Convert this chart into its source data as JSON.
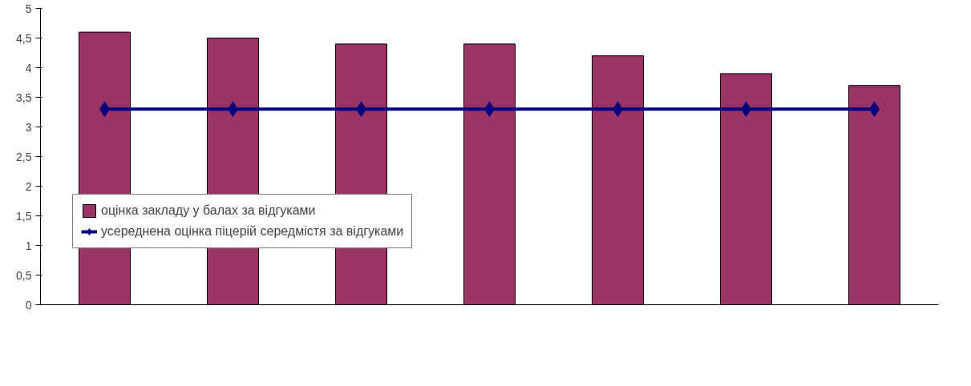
{
  "chart_data": {
    "type": "bar",
    "categories": [
      null,
      null,
      null,
      null,
      null,
      null,
      null
    ],
    "series": [
      {
        "name": "оцінка закладу у балах за відгуками",
        "color": "#993366",
        "values": [
          4.6,
          4.5,
          4.4,
          4.4,
          4.2,
          3.9,
          3.7
        ]
      },
      {
        "name": "усереднена оцінка піцерій середмістя за відгуками",
        "type": "line",
        "color": "#000080",
        "marker": "diamond",
        "values": [
          3.3,
          3.3,
          3.3,
          3.3,
          3.3,
          3.3,
          3.3
        ]
      }
    ],
    "ylim": [
      0,
      5
    ],
    "yticks": [
      0,
      {
        "value": 0.5,
        "label": "0,5"
      },
      1,
      {
        "value": 1.5,
        "label": "1,5"
      },
      2,
      {
        "value": 2.5,
        "label": "2,5"
      },
      3,
      {
        "value": 3.5,
        "label": "3,5"
      },
      4,
      {
        "value": 4.5,
        "label": "4,5"
      },
      5
    ],
    "tick_labels": "y",
    "grid": false,
    "legend": "bottom"
  }
}
